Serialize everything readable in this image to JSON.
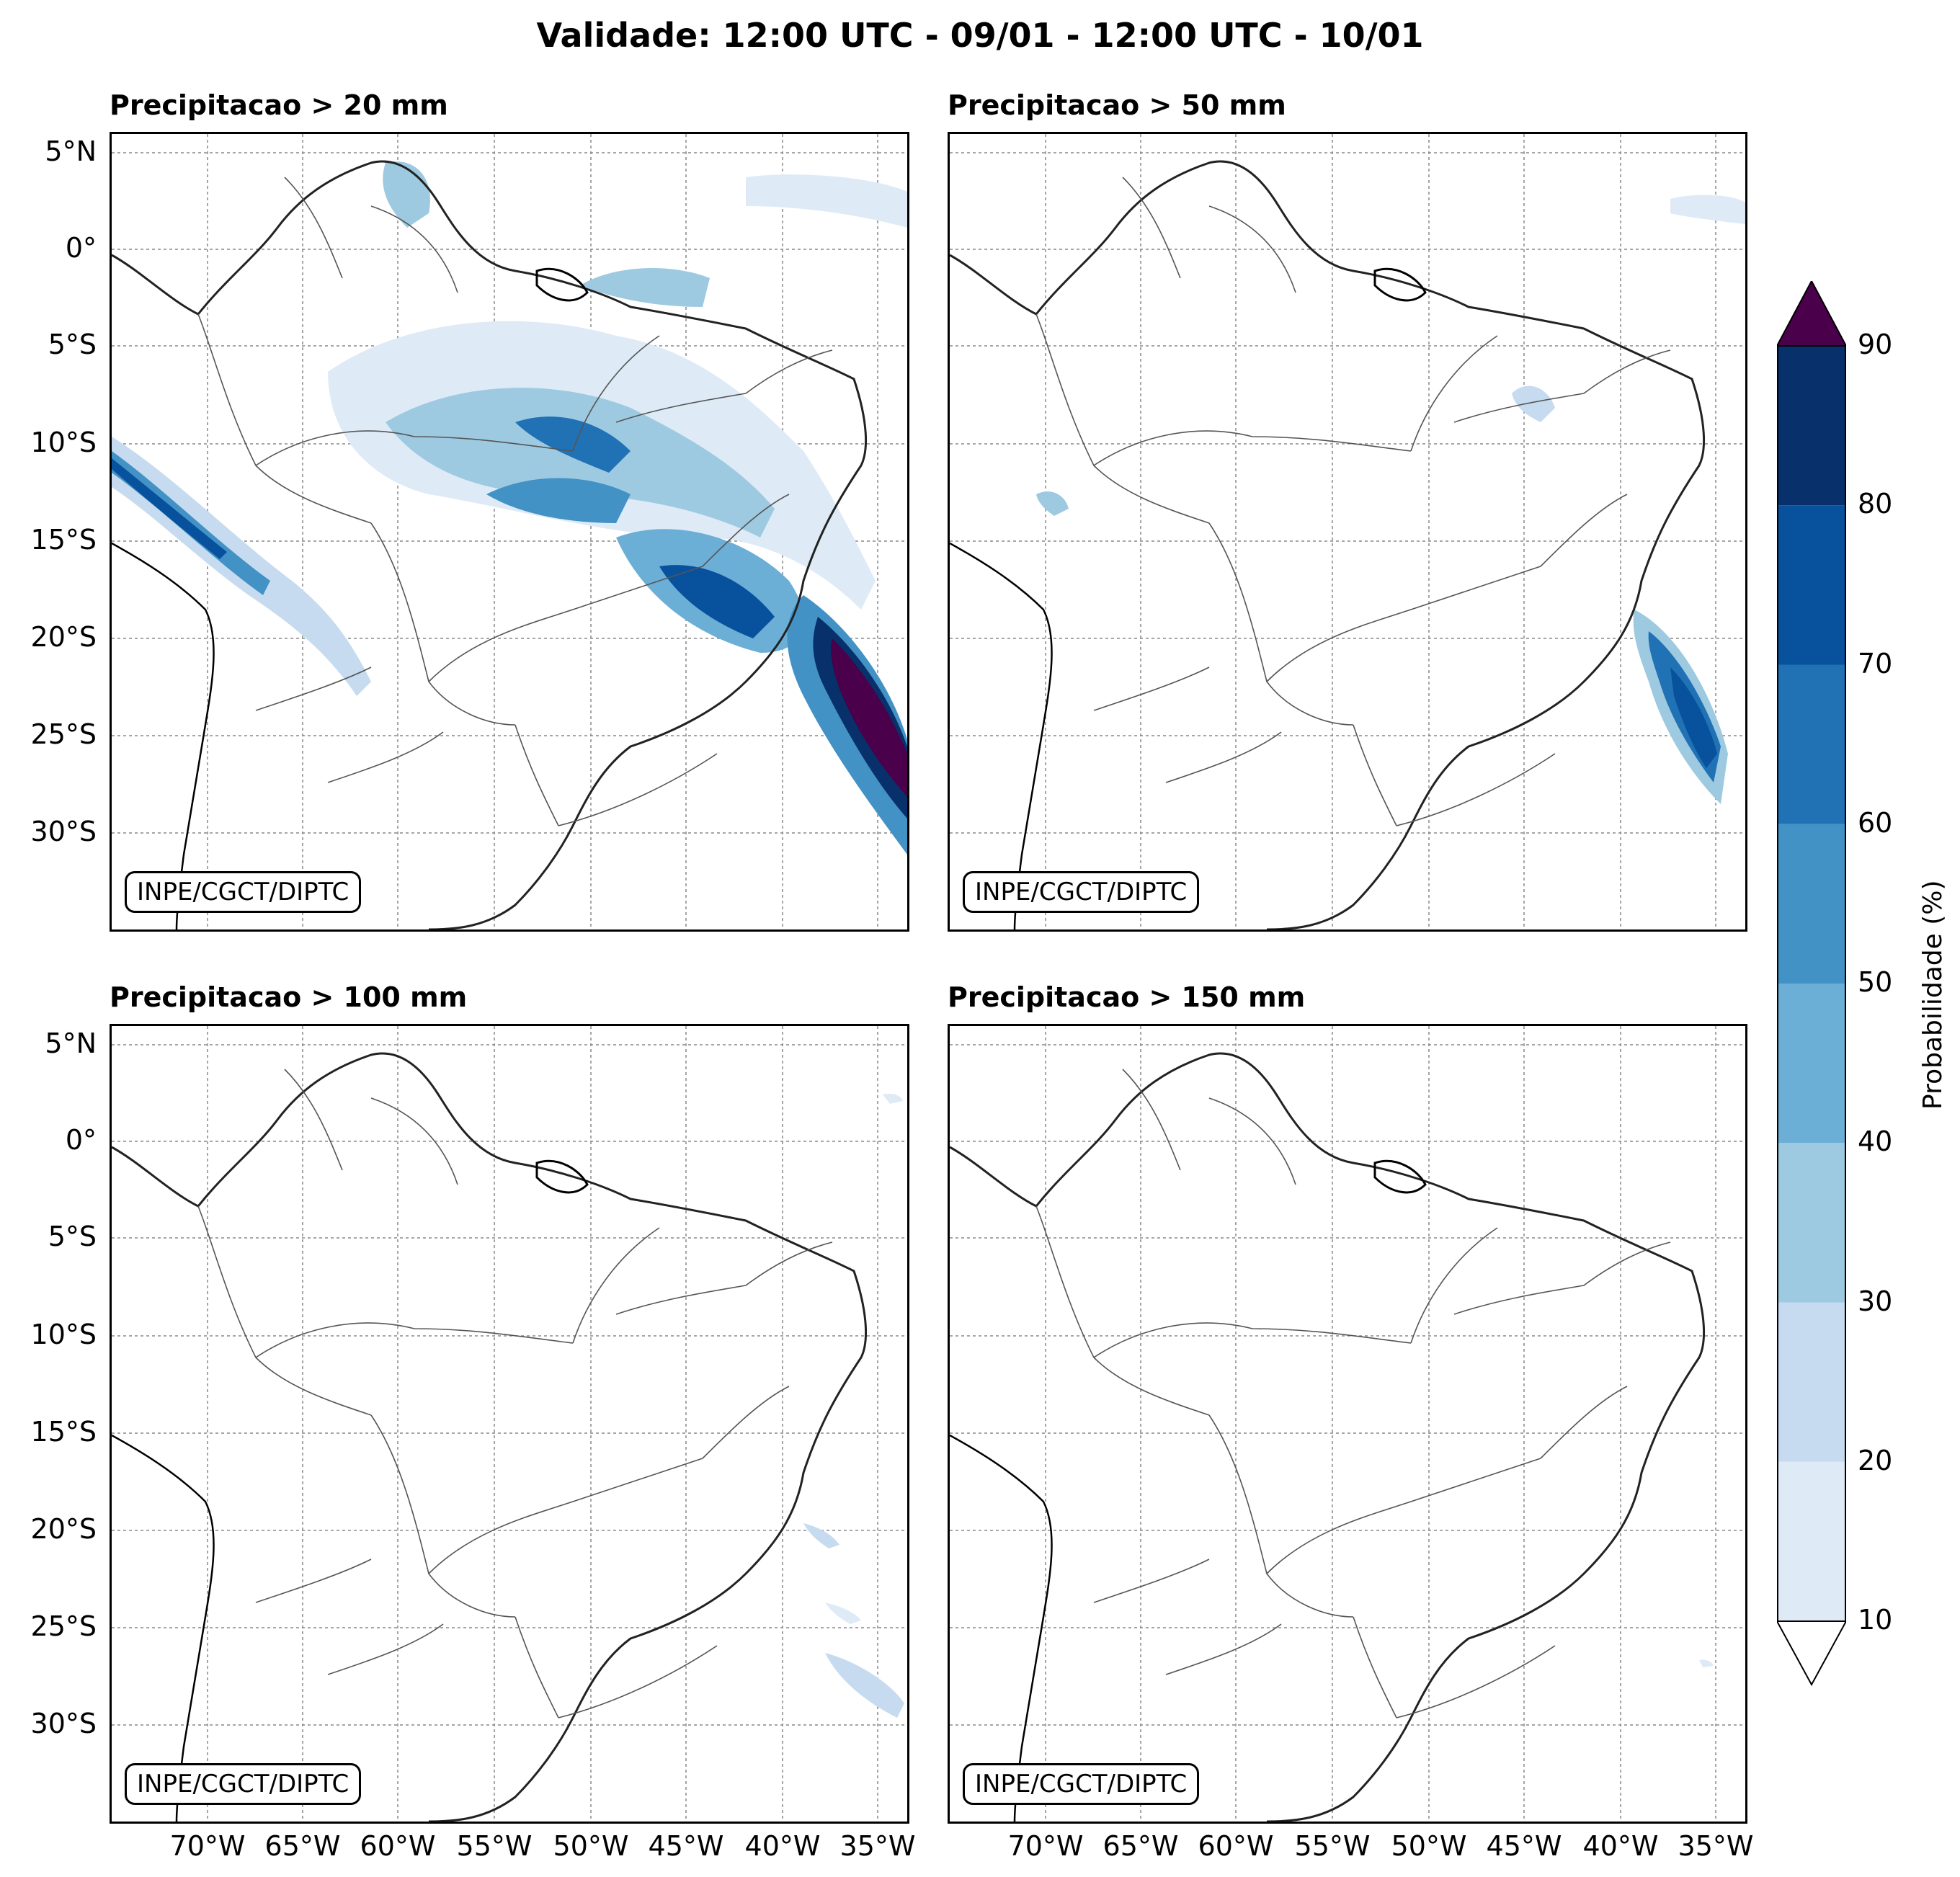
{
  "title": "Validade: 12:00 UTC - 09/01 - 12:00 UTC - 10/01",
  "panels": [
    {
      "title": "Precipitacao > 20 mm",
      "credit": "INPE/CGCT/DIPTC"
    },
    {
      "title": "Precipitacao > 50 mm",
      "credit": "INPE/CGCT/DIPTC"
    },
    {
      "title": "Precipitacao > 100 mm",
      "credit": "INPE/CGCT/DIPTC"
    },
    {
      "title": "Precipitacao > 150 mm",
      "credit": "INPE/CGCT/DIPTC"
    }
  ],
  "lat_ticks": [
    "5°N",
    "0°",
    "5°S",
    "10°S",
    "15°S",
    "20°S",
    "25°S",
    "30°S"
  ],
  "lon_ticks": [
    "70°W",
    "65°W",
    "60°W",
    "55°W",
    "50°W",
    "45°W",
    "40°W",
    "35°W"
  ],
  "colorbar": {
    "label": "Probabilidade (%)",
    "ticks": [
      "10",
      "20",
      "30",
      "40",
      "50",
      "60",
      "70",
      "80",
      "90"
    ],
    "colors": [
      "#deebf7",
      "#c6dbef",
      "#9ecae1",
      "#6baed6",
      "#4292c6",
      "#2171b5",
      "#08519c",
      "#08306b"
    ],
    "over_color": "#4a004a"
  }
}
